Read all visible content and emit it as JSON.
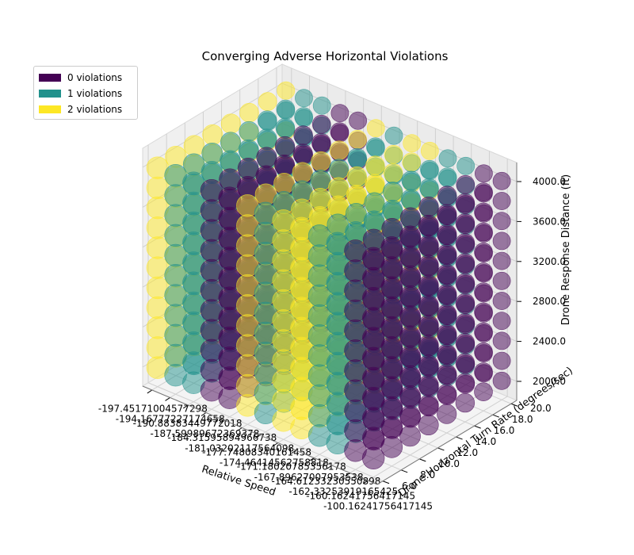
{
  "chart_data": {
    "type": "scatter",
    "title": "Converging Adverse Horizontal Violations",
    "xlabel": "Relative Speed",
    "ylabel": "Drone Horizontal Turn Rate (degrees/sec)",
    "zlabel": "Drone Response Distance (ft)",
    "x_first_tick": "-197.45171004577298",
    "x_last_tick": "-100.16241756417145",
    "x_overlapping_tick_fragments": [
      "-194.16777227174658",
      "-190.88383449772018",
      "-187.59989672369378",
      "-184.31595894966738",
      "-181.03202117564098",
      "-177.74808340161458",
      "-174.46414562758818",
      "-171.18020785356178",
      "-167.89627007953538",
      "-164.61233230550898",
      "-162.33253919165425",
      "-160.16241756417145"
    ],
    "y_ticks": [
      "6.0",
      "8.0",
      "10.0",
      "12.0",
      "14.0",
      "16.0",
      "18.0",
      "20.0"
    ],
    "z_ticks": [
      "2000.0",
      "2400.0",
      "2800.0",
      "3200.0",
      "3600.0",
      "4000.0"
    ],
    "ylim": [
      6.0,
      20.0
    ],
    "zlim": [
      2000.0,
      4000.0
    ],
    "grid": true,
    "legend_position": "top-left",
    "legend": [
      {
        "label": "0 violations",
        "color": "#440154"
      },
      {
        "label": "1 violations",
        "color": "#21918c"
      },
      {
        "label": "2 violations",
        "color": "#fde725"
      }
    ],
    "marker_alpha": 0.5,
    "x_levels": 13,
    "y_levels": 8,
    "z_levels": 11,
    "approx_violations_by_x_level": [
      2,
      1,
      1,
      0,
      0,
      2,
      1,
      2,
      2,
      1,
      1,
      0,
      0
    ],
    "note": "Large semi-transparent markers on a regular grid, colored by violation count (viridis)."
  }
}
